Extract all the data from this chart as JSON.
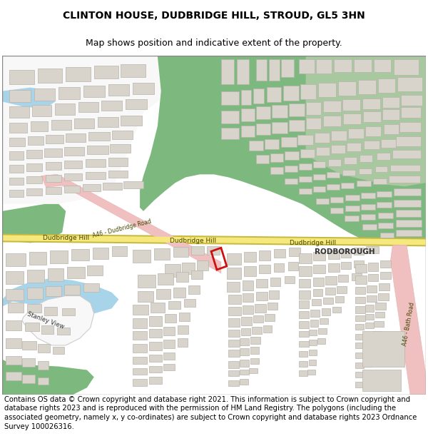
{
  "title_line1": "CLINTON HOUSE, DUDBRIDGE HILL, STROUD, GL5 3HN",
  "title_line2": "Map shows position and indicative extent of the property.",
  "copyright_text": "Contains OS data © Crown copyright and database right 2021. This information is subject to Crown copyright and database rights 2023 and is reproduced with the permission of HM Land Registry. The polygons (including the associated geometry, namely x, y co-ordinates) are subject to Crown copyright and database rights 2023 Ordnance Survey 100026316.",
  "map_bg": "#f5f3ef",
  "green1": "#7db87e",
  "green2": "#a8c9a0",
  "road_yellow": "#f5e87c",
  "road_yellow_border": "#c8b840",
  "road_pink": "#f0c0c0",
  "road_pink_border": "#e8a8a8",
  "building_fill": "#d8d4cc",
  "building_edge": "#b8b4ac",
  "water_color": "#a8d4ea",
  "highlight_color": "#cc1111",
  "text_dark": "#333333",
  "text_road": "#444400",
  "title_fs": 10,
  "subtitle_fs": 9,
  "copy_fs": 7.2
}
